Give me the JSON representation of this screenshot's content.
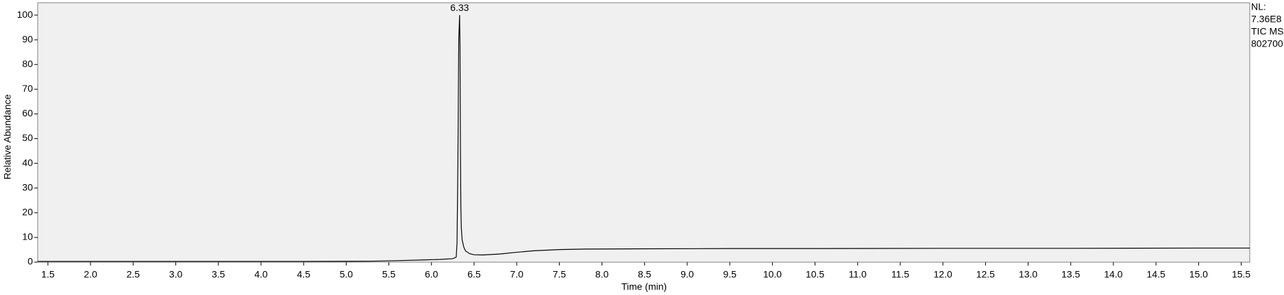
{
  "chart_data": {
    "type": "line",
    "x_label": "Time (min)",
    "y_label": "Relative Abundance",
    "info": [
      "NL:",
      "7.36E8",
      "TIC MS",
      "802700"
    ],
    "annotations": [
      {
        "x": 6.33,
        "y": 100,
        "label": "6.33"
      }
    ],
    "xlim": [
      1.38,
      15.6
    ],
    "ylim": [
      0,
      105
    ],
    "xticks": [
      1.5,
      {
        "value": 2,
        "label": "2.0"
      },
      2.5,
      {
        "value": 3,
        "label": "3.0"
      },
      3.5,
      {
        "value": 4,
        "label": "4.0"
      },
      4.5,
      {
        "value": 5,
        "label": "5.0"
      },
      5.5,
      {
        "value": 6,
        "label": "6.0"
      },
      6.5,
      {
        "value": 7,
        "label": "7.0"
      },
      7.5,
      {
        "value": 8,
        "label": "8.0"
      },
      8.5,
      {
        "value": 9,
        "label": "9.0"
      },
      9.5,
      {
        "value": 10,
        "label": "10.0"
      },
      10.5,
      {
        "value": 11,
        "label": "11.0"
      },
      11.5,
      {
        "value": 12,
        "label": "12.0"
      },
      12.5,
      {
        "value": 13,
        "label": "13.0"
      },
      13.5,
      {
        "value": 14,
        "label": "14.0"
      },
      14.5,
      {
        "value": 15,
        "label": "15.0"
      },
      15.5
    ],
    "yticks": [
      0,
      10,
      20,
      30,
      40,
      50,
      60,
      70,
      80,
      90,
      100
    ],
    "grid": false,
    "series": [
      {
        "color": "#000000",
        "x": [
          1.38,
          2,
          3,
          4,
          4.5,
          5,
          5.3,
          5.6,
          5.9,
          6.1,
          6.25,
          6.29,
          6.3,
          6.31,
          6.32,
          6.33,
          6.335,
          6.34,
          6.345,
          6.35,
          6.36,
          6.38,
          6.4,
          6.45,
          6.5,
          6.6,
          6.8,
          7.0,
          7.2,
          7.5,
          7.8,
          8.5,
          9.5,
          10.5,
          12,
          13.5,
          15,
          15.6
        ],
        "values": [
          0.3,
          0.3,
          0.3,
          0.3,
          0.3,
          0.35,
          0.4,
          0.6,
          0.9,
          1.1,
          1.4,
          2,
          8,
          40,
          90,
          100,
          87,
          45,
          22,
          14,
          9,
          6,
          4.5,
          3.4,
          3.0,
          2.9,
          3.3,
          4.0,
          4.6,
          5.1,
          5.3,
          5.4,
          5.5,
          5.5,
          5.6,
          5.6,
          5.7,
          5.7
        ]
      }
    ]
  }
}
